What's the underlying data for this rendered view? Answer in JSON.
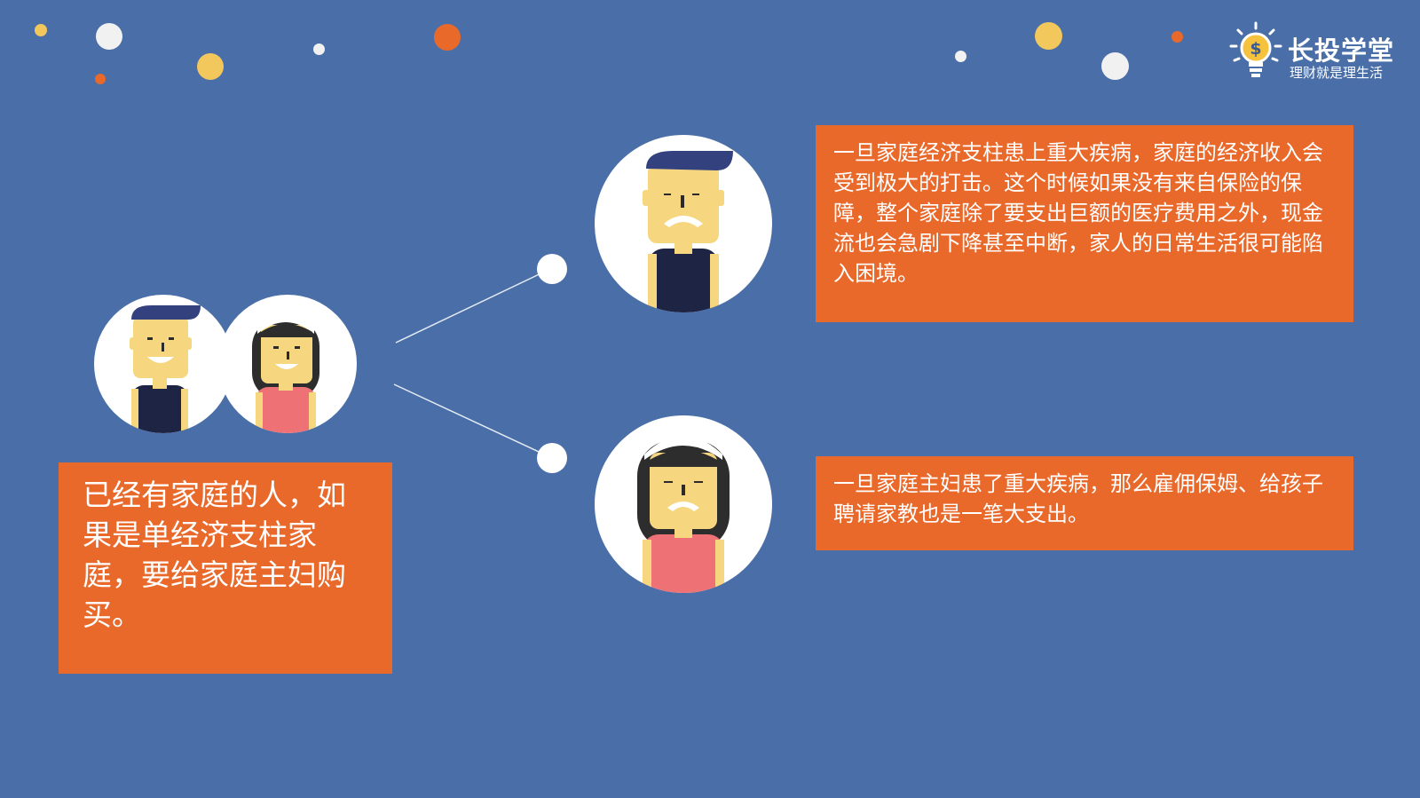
{
  "logo": {
    "title": "长投学堂",
    "subtitle": "理财就是理生活",
    "icon": "lightbulb-dollar-icon"
  },
  "intro": {
    "text": "已经有家庭的人，如果是单经济支柱家庭，要给家庭主妇购买。"
  },
  "scenarios": [
    {
      "figure": "man-avatar-icon",
      "text": "一旦家庭经济支柱患上重大疾病，家庭的经济收入会受到极大的打击。这个时候如果没有来自保险的保障，整个家庭除了要支出巨额的医疗费用之外，现金流也会急剧下降甚至中断，家人的日常生活很可能陷入困境。"
    },
    {
      "figure": "woman-avatar-icon",
      "text": "一旦家庭主妇患了重大疾病，那么雇佣保姆、给孩子聘请家教也是一笔大支出。"
    }
  ],
  "colors": {
    "background": "#4a6fa8",
    "box": "#e9692b",
    "skin": "#f6d77f",
    "cap": "#33417f",
    "shirt_man": "#1d2444",
    "shirt_woman": "#ee7176",
    "hair_woman": "#2d2d2d"
  }
}
